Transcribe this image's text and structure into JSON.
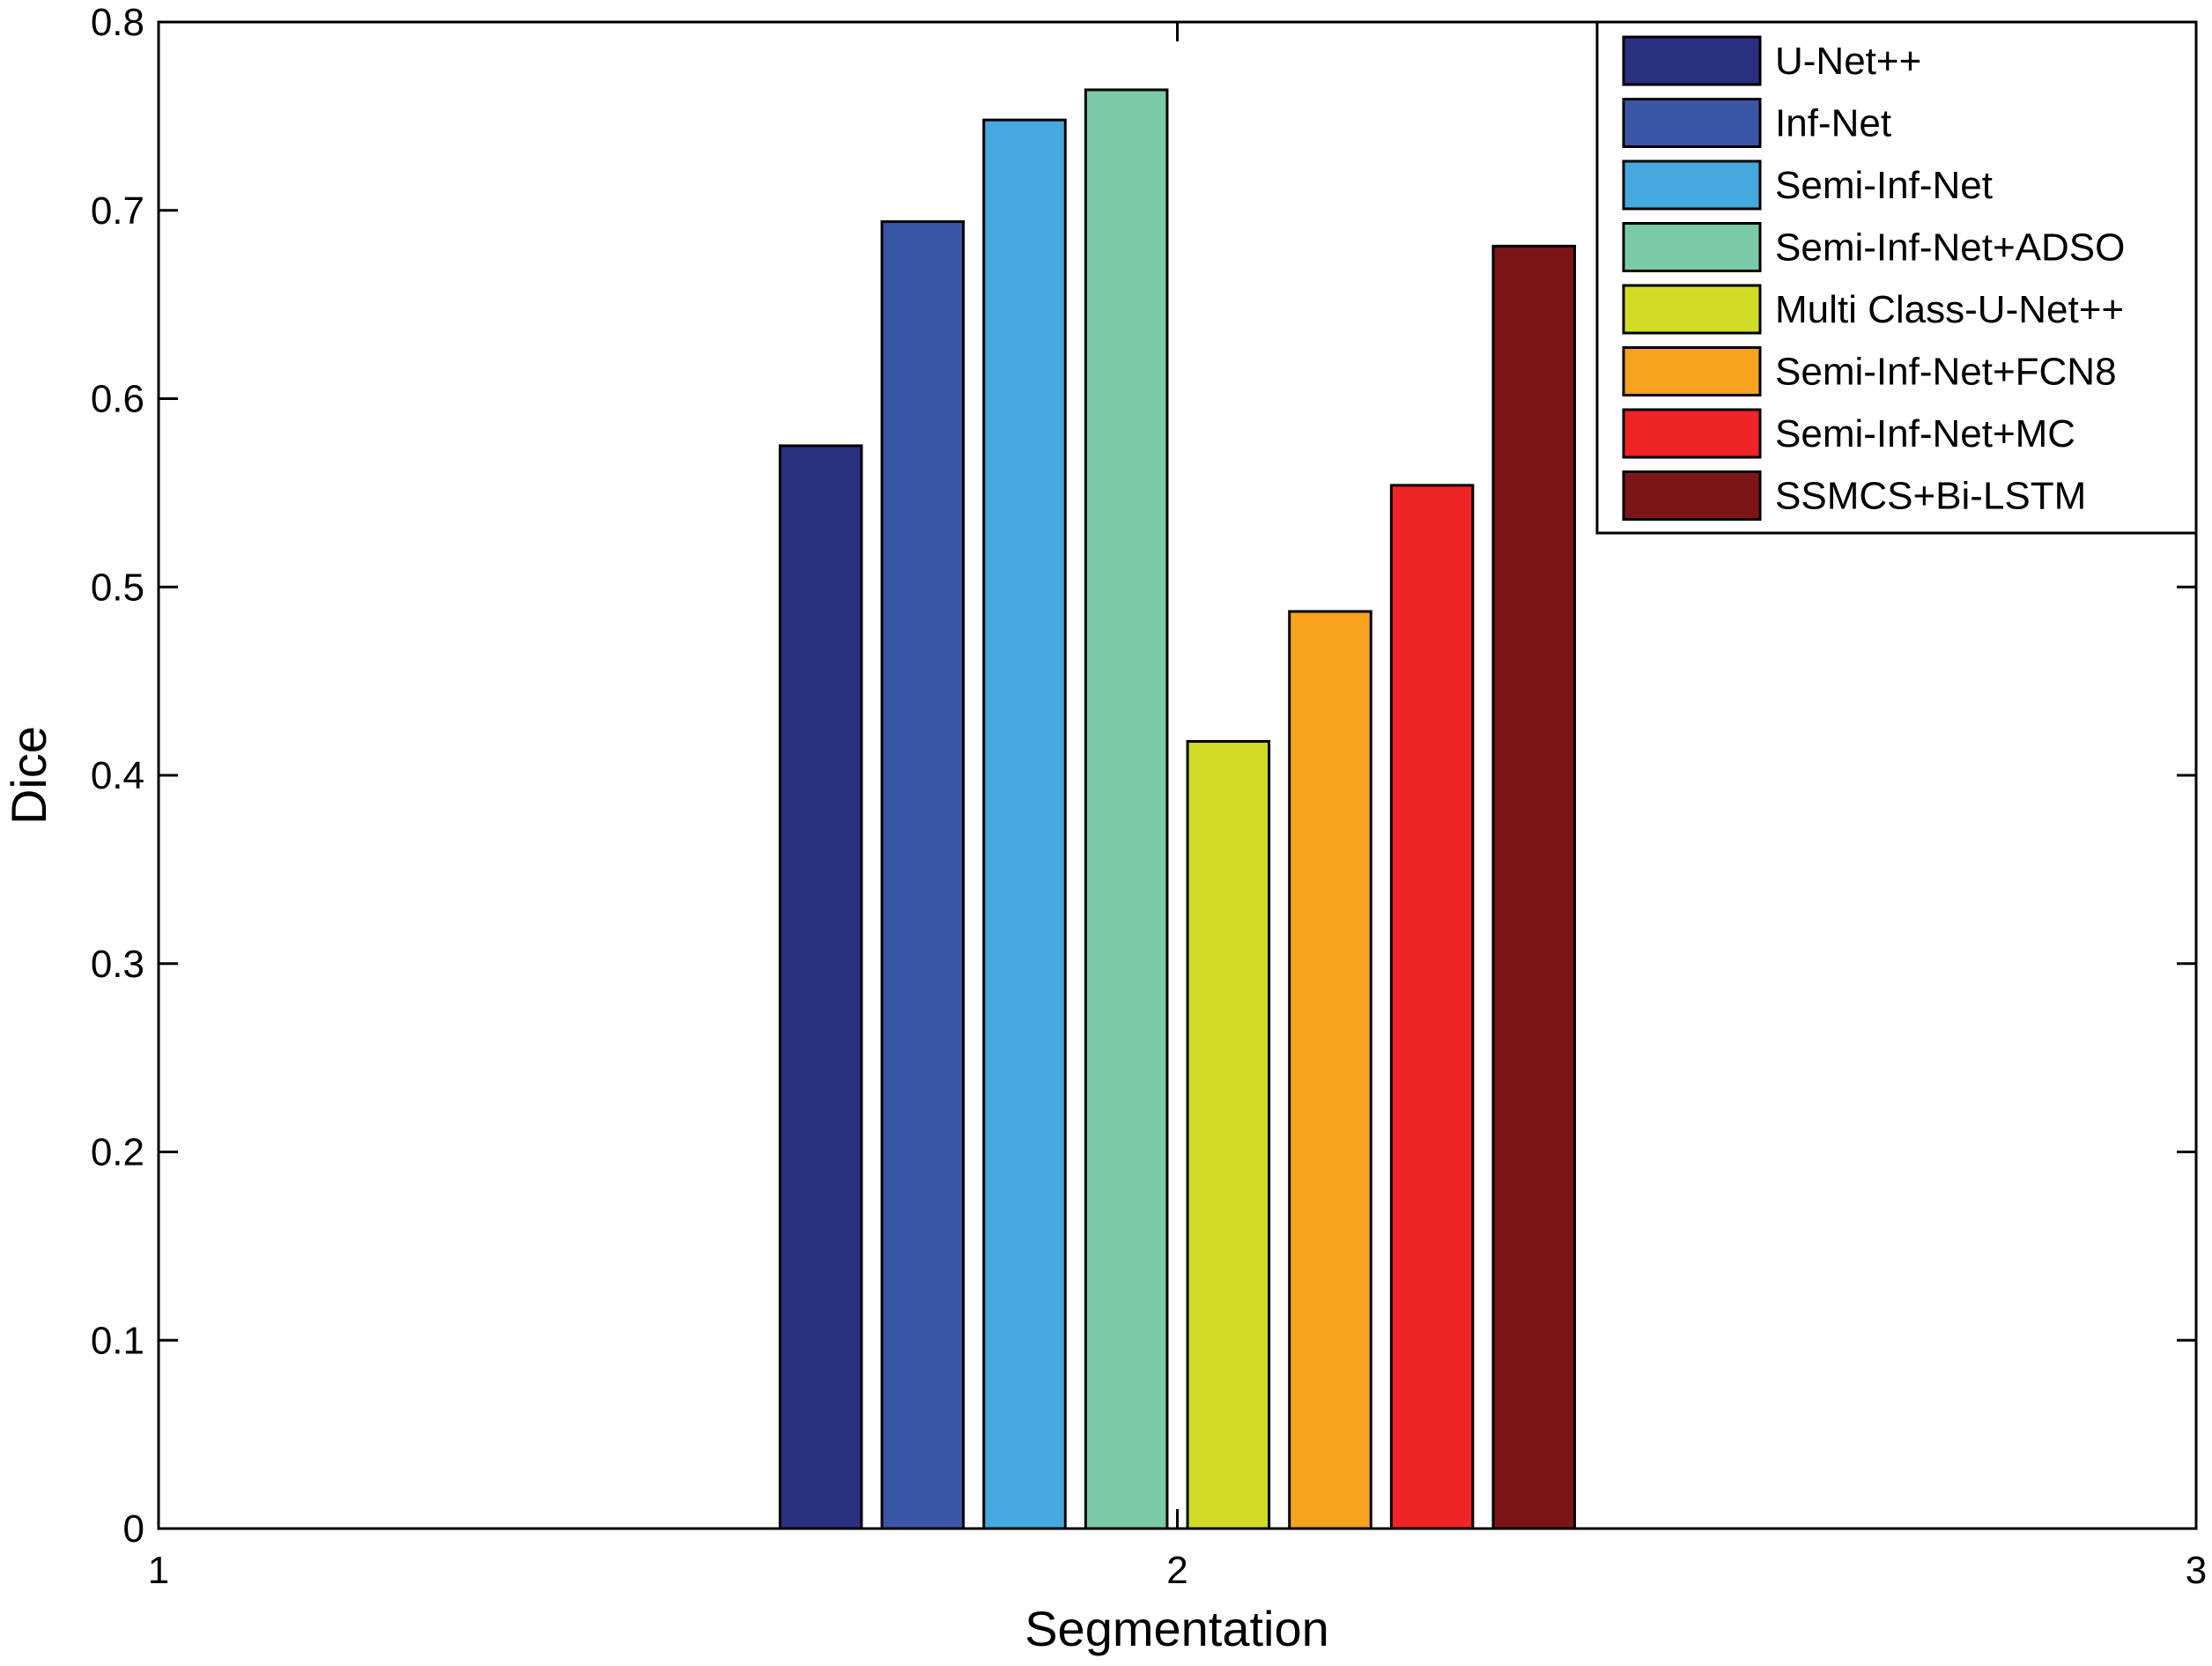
{
  "chart_data": {
    "type": "bar",
    "xlabel": "Segmentation",
    "ylabel": "Dice",
    "xlim": [
      1,
      3
    ],
    "ylim": [
      0,
      0.8
    ],
    "xticks": [
      "1",
      "2",
      "3"
    ],
    "yticks": [
      "0",
      "0.1",
      "0.2",
      "0.3",
      "0.4",
      "0.5",
      "0.6",
      "0.7",
      "0.8"
    ],
    "grid": false,
    "legend_position": "top-right",
    "group_x": 2,
    "series": [
      {
        "name": "U-Net++",
        "value": 0.575,
        "color": "#2b2f7f"
      },
      {
        "name": "Inf-Net",
        "value": 0.694,
        "color": "#3b56a6"
      },
      {
        "name": "Semi-Inf-Net",
        "value": 0.748,
        "color": "#45a8de"
      },
      {
        "name": "Semi-Inf-Net+ADSO",
        "value": 0.764,
        "color": "#7bcaa7"
      },
      {
        "name": "Multi Class-U-Net++",
        "value": 0.418,
        "color": "#d0dc24"
      },
      {
        "name": "Semi-Inf-Net+FCN8",
        "value": 0.487,
        "color": "#f8a21f"
      },
      {
        "name": "Semi-Inf-Net+MC",
        "value": 0.554,
        "color": "#ee2426"
      },
      {
        "name": "SSMCS+Bi-LSTM",
        "value": 0.681,
        "color": "#7d1517"
      }
    ]
  }
}
